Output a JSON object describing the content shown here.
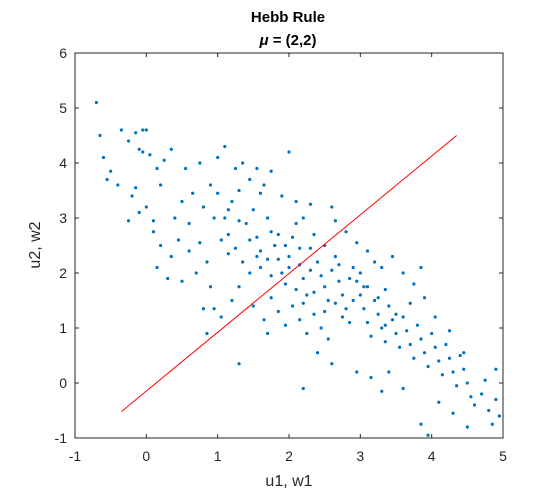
{
  "chart_data": {
    "type": "scatter",
    "title": "Hebb Rule",
    "subtitle_symbol": "μ",
    "subtitle_rest": " = (2,2)",
    "xlabel": "u1, w1",
    "ylabel": "u2, w2",
    "xlim": [
      -1,
      5
    ],
    "ylim": [
      -1,
      6
    ],
    "xticks": [
      -1,
      0,
      1,
      2,
      3,
      4,
      5
    ],
    "yticks": [
      -1,
      0,
      1,
      2,
      3,
      4,
      5,
      6
    ],
    "xtick_labels": [
      "-1",
      "0",
      "1",
      "2",
      "3",
      "4",
      "5"
    ],
    "ytick_labels": [
      "-1",
      "0",
      "1",
      "2",
      "3",
      "4",
      "5",
      "6"
    ],
    "grid": false,
    "colors": {
      "points": "#0072BD",
      "line": "#FF0000",
      "axes": "#262626"
    },
    "series": [
      {
        "type": "scatter",
        "points": [
          [
            -0.7,
            5.1
          ],
          [
            -0.65,
            4.5
          ],
          [
            -0.6,
            4.1
          ],
          [
            -0.55,
            3.7
          ],
          [
            -0.5,
            3.85
          ],
          [
            -0.4,
            3.6
          ],
          [
            -0.35,
            4.6
          ],
          [
            -0.25,
            4.4
          ],
          [
            -0.15,
            4.55
          ],
          [
            -0.05,
            4.6
          ],
          [
            0.0,
            4.6
          ],
          [
            -0.1,
            4.25
          ],
          [
            -0.05,
            4.2
          ],
          [
            0.05,
            4.15
          ],
          [
            0.15,
            3.9
          ],
          [
            0.2,
            3.6
          ],
          [
            -0.2,
            3.4
          ],
          [
            -0.1,
            3.1
          ],
          [
            0.0,
            3.2
          ],
          [
            -0.25,
            2.95
          ],
          [
            0.1,
            2.75
          ],
          [
            0.2,
            2.5
          ],
          [
            0.15,
            2.1
          ],
          [
            0.3,
            1.9
          ],
          [
            0.4,
            3.0
          ],
          [
            0.5,
            3.3
          ],
          [
            0.45,
            2.6
          ],
          [
            0.6,
            2.4
          ],
          [
            0.7,
            2.0
          ],
          [
            0.8,
            3.2
          ],
          [
            0.9,
            3.6
          ],
          [
            1.0,
            4.1
          ],
          [
            0.75,
            4.0
          ],
          [
            0.55,
            3.9
          ],
          [
            0.35,
            4.25
          ],
          [
            0.25,
            4.05
          ],
          [
            0.6,
            2.9
          ],
          [
            0.75,
            2.55
          ],
          [
            0.85,
            2.2
          ],
          [
            0.9,
            1.75
          ],
          [
            0.95,
            1.35
          ],
          [
            0.85,
            0.9
          ],
          [
            1.1,
            3.0
          ],
          [
            1.2,
            3.3
          ],
          [
            1.3,
            3.5
          ],
          [
            1.15,
            2.7
          ],
          [
            1.25,
            2.45
          ],
          [
            1.35,
            2.2
          ],
          [
            1.4,
            2.9
          ],
          [
            1.5,
            3.15
          ],
          [
            1.55,
            2.65
          ],
          [
            1.6,
            2.4
          ],
          [
            1.45,
            2.0
          ],
          [
            1.3,
            1.75
          ],
          [
            1.2,
            1.5
          ],
          [
            1.05,
            1.2
          ],
          [
            1.1,
            4.3
          ],
          [
            1.25,
            3.9
          ],
          [
            1.45,
            3.7
          ],
          [
            1.6,
            3.45
          ],
          [
            1.7,
            3.0
          ],
          [
            1.75,
            2.75
          ],
          [
            1.8,
            2.5
          ],
          [
            1.85,
            2.25
          ],
          [
            1.9,
            2.0
          ],
          [
            1.95,
            1.8
          ],
          [
            2.0,
            2.3
          ],
          [
            2.05,
            2.65
          ],
          [
            2.1,
            2.9
          ],
          [
            2.15,
            2.15
          ],
          [
            2.2,
            1.9
          ],
          [
            2.25,
            1.6
          ],
          [
            2.3,
            2.45
          ],
          [
            2.35,
            2.7
          ],
          [
            2.4,
            2.2
          ],
          [
            2.45,
            1.95
          ],
          [
            2.5,
            1.75
          ],
          [
            2.55,
            1.5
          ],
          [
            2.6,
            2.05
          ],
          [
            2.65,
            2.3
          ],
          [
            2.7,
            1.85
          ],
          [
            2.75,
            1.6
          ],
          [
            2.8,
            1.35
          ],
          [
            2.85,
            1.1
          ],
          [
            1.75,
            1.55
          ],
          [
            1.85,
            1.3
          ],
          [
            1.95,
            1.05
          ],
          [
            2.05,
            1.4
          ],
          [
            2.15,
            1.15
          ],
          [
            2.25,
            0.9
          ],
          [
            2.35,
            1.25
          ],
          [
            2.45,
            1.0
          ],
          [
            2.55,
            0.8
          ],
          [
            2.0,
            4.2
          ],
          [
            2.1,
            3.3
          ],
          [
            2.2,
            3.0
          ],
          [
            2.3,
            3.25
          ],
          [
            1.65,
            3.6
          ],
          [
            1.55,
            3.9
          ],
          [
            1.35,
            4.0
          ],
          [
            1.75,
            3.85
          ],
          [
            1.9,
            3.4
          ],
          [
            2.9,
            2.1
          ],
          [
            2.95,
            1.85
          ],
          [
            3.0,
            1.6
          ],
          [
            3.05,
            1.35
          ],
          [
            3.1,
            1.1
          ],
          [
            3.15,
            0.85
          ],
          [
            3.2,
            1.5
          ],
          [
            3.25,
            1.25
          ],
          [
            3.3,
            1.0
          ],
          [
            3.35,
            0.75
          ],
          [
            3.4,
            1.4
          ],
          [
            3.45,
            1.15
          ],
          [
            3.5,
            0.9
          ],
          [
            3.55,
            0.65
          ],
          [
            3.6,
            1.2
          ],
          [
            3.65,
            0.95
          ],
          [
            3.7,
            0.7
          ],
          [
            3.75,
            0.45
          ],
          [
            3.8,
            1.05
          ],
          [
            3.85,
            0.8
          ],
          [
            3.9,
            0.55
          ],
          [
            3.95,
            0.3
          ],
          [
            4.0,
            0.9
          ],
          [
            4.05,
            0.65
          ],
          [
            4.1,
            0.4
          ],
          [
            4.15,
            0.15
          ],
          [
            4.2,
            0.7
          ],
          [
            4.25,
            0.45
          ],
          [
            4.3,
            0.2
          ],
          [
            4.35,
            -0.05
          ],
          [
            4.4,
            0.5
          ],
          [
            4.45,
            0.25
          ],
          [
            4.5,
            0.0
          ],
          [
            4.55,
            -0.25
          ],
          [
            4.6,
            -0.4
          ],
          [
            4.7,
            -0.2
          ],
          [
            4.75,
            0.05
          ],
          [
            4.8,
            -0.5
          ],
          [
            4.85,
            -0.75
          ],
          [
            4.9,
            -0.3
          ],
          [
            4.95,
            -0.6
          ],
          [
            4.5,
            -0.8
          ],
          [
            4.3,
            -0.55
          ],
          [
            4.1,
            -0.35
          ],
          [
            3.95,
            -0.95
          ],
          [
            3.85,
            -0.75
          ],
          [
            3.6,
            -0.1
          ],
          [
            3.4,
            0.2
          ],
          [
            3.3,
            2.1
          ],
          [
            3.45,
            2.3
          ],
          [
            3.6,
            2.0
          ],
          [
            3.75,
            1.8
          ],
          [
            3.85,
            2.1
          ],
          [
            3.9,
            1.55
          ],
          [
            3.1,
            2.4
          ],
          [
            3.2,
            2.2
          ],
          [
            2.95,
            2.55
          ],
          [
            2.8,
            2.75
          ],
          [
            2.65,
            2.95
          ],
          [
            2.6,
            3.2
          ],
          [
            4.9,
            0.25
          ],
          [
            4.45,
            0.55
          ],
          [
            4.25,
            0.95
          ],
          [
            4.05,
            1.2
          ],
          [
            3.7,
            1.45
          ],
          [
            3.35,
            1.7
          ],
          [
            1.5,
            1.4
          ],
          [
            1.65,
            1.15
          ],
          [
            1.7,
            0.9
          ],
          [
            2.4,
            0.55
          ],
          [
            2.6,
            0.35
          ],
          [
            2.95,
            0.2
          ],
          [
            3.15,
            0.1
          ],
          [
            3.3,
            -0.15
          ],
          [
            2.2,
            -0.1
          ],
          [
            1.3,
            0.35
          ],
          [
            0.8,
            1.35
          ],
          [
            0.5,
            1.85
          ],
          [
            0.35,
            2.3
          ],
          [
            0.1,
            2.95
          ],
          [
            -0.15,
            3.55
          ],
          [
            0.65,
            3.45
          ],
          [
            0.95,
            3.0
          ],
          [
            1.05,
            2.6
          ],
          [
            1.15,
            2.35
          ],
          [
            1.6,
            2.1
          ],
          [
            1.75,
            1.95
          ],
          [
            1.95,
            2.5
          ],
          [
            2.15,
            2.45
          ],
          [
            2.3,
            2.05
          ],
          [
            2.5,
            2.5
          ],
          [
            2.7,
            2.15
          ],
          [
            2.85,
            1.9
          ],
          [
            3.0,
            2.0
          ],
          [
            3.1,
            1.75
          ],
          [
            3.25,
            1.55
          ],
          [
            1.0,
            3.45
          ],
          [
            1.15,
            3.15
          ],
          [
            1.3,
            2.95
          ],
          [
            1.45,
            2.6
          ],
          [
            1.55,
            2.3
          ],
          [
            1.7,
            2.25
          ],
          [
            1.85,
            2.7
          ],
          [
            2.0,
            2.1
          ],
          [
            2.1,
            1.7
          ],
          [
            2.2,
            1.45
          ],
          [
            2.35,
            1.65
          ],
          [
            2.5,
            1.3
          ],
          [
            2.65,
            1.45
          ],
          [
            2.75,
            1.2
          ],
          [
            2.9,
            1.5
          ],
          [
            3.05,
            1.75
          ],
          [
            3.35,
            1.05
          ],
          [
            3.5,
            1.25
          ]
        ]
      },
      {
        "type": "line",
        "points": [
          [
            -0.35,
            -0.52
          ],
          [
            4.35,
            4.5
          ]
        ]
      }
    ]
  }
}
